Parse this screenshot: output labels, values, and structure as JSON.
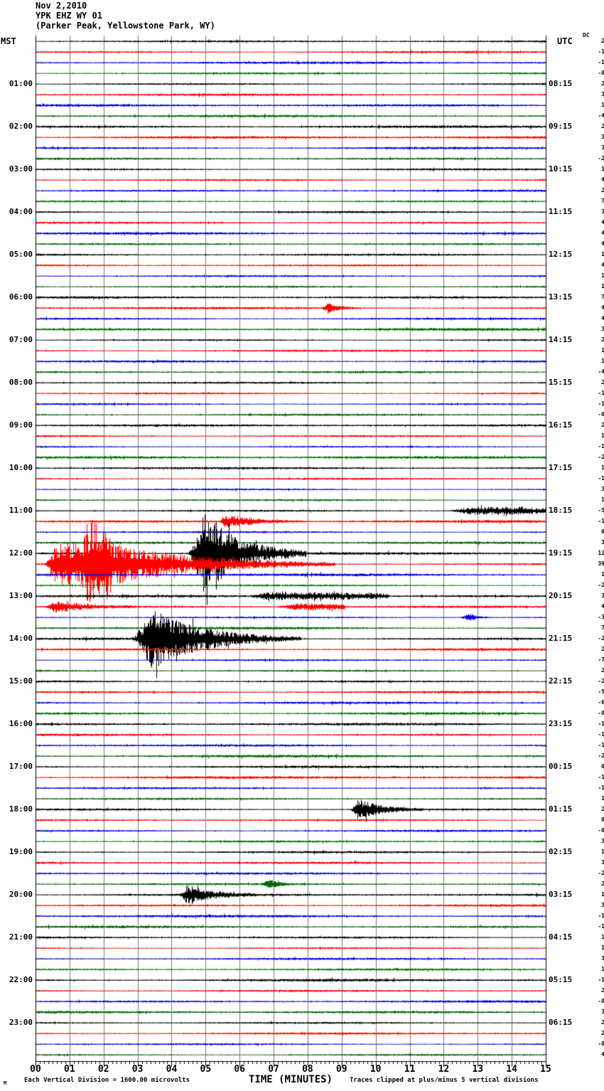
{
  "header": {
    "date": "Nov 2,2010",
    "station": "YPK EHZ WY 01",
    "location": "(Parker Peak, Yellowstone Park, WY)",
    "left_axis_label": "MST",
    "right_axis_label": "UTC",
    "dc_column_label": "DC"
  },
  "footer": {
    "scale_note": "Each Vertical Division = 1600.00 microvolts",
    "axis_title": "TIME (MINUTES)",
    "clip_note": "Traces clipped at plus/minus 5 vertical divisions",
    "watermark": "M"
  },
  "chart_data": {
    "type": "line",
    "subtype": "helicorder-seismogram",
    "title": "YPK EHZ WY 01 (Parker Peak, Yellowstone Park, WY) Nov 2,2010",
    "xlabel": "TIME (MINUTES)",
    "x_range_minutes": [
      0,
      15
    ],
    "x_tick_labels": [
      "00",
      "01",
      "02",
      "03",
      "04",
      "05",
      "06",
      "07",
      "08",
      "09",
      "10",
      "11",
      "12",
      "13",
      "14",
      "15"
    ],
    "minor_ticks_per_minute": 8,
    "minutes_per_trace": 15,
    "trace_count": 96,
    "first_trace_start_mst": "00:00",
    "color_cycle": [
      "#000000",
      "#ff0000",
      "#0000dd",
      "#006600"
    ],
    "grid_color": "#7a7a7a",
    "border_color": "#000000",
    "clip_divisions": 5,
    "noise_amplitude_divisions": 0.08,
    "left_labels_mst": [
      "01:00",
      "02:00",
      "03:00",
      "04:00",
      "05:00",
      "06:00",
      "07:00",
      "08:00",
      "09:00",
      "10:00",
      "11:00",
      "12:00",
      "13:00",
      "14:00",
      "15:00",
      "16:00",
      "17:00",
      "18:00",
      "19:00",
      "20:00",
      "21:00",
      "22:00",
      "23:00"
    ],
    "right_labels_utc": [
      "08:15",
      "09:15",
      "10:15",
      "11:15",
      "12:15",
      "13:15",
      "14:15",
      "15:15",
      "16:15",
      "17:15",
      "18:15",
      "19:15",
      "20:15",
      "21:15",
      "22:15",
      "23:15",
      "00:15",
      "01:15",
      "02:15",
      "03:15",
      "04:15",
      "05:15",
      "06:15"
    ],
    "dc_offsets": [
      "2",
      "-1",
      "-1",
      "-0",
      "2",
      "3",
      "1",
      "-4",
      "2",
      "3",
      "3",
      "-2",
      "1",
      "4",
      "2",
      "7",
      "3",
      "4",
      "4",
      "4",
      "1",
      "4",
      "1",
      "1",
      "7",
      "4",
      "4",
      "3",
      "2",
      "1",
      "1",
      "-4",
      "2",
      "-1",
      "-1",
      "-0",
      "2",
      "1",
      "-1",
      "-2",
      "1",
      "-1",
      "3",
      "1",
      "-5",
      "-1",
      "0",
      "3",
      "12",
      "39",
      "1",
      "-2",
      "3",
      "4",
      "-3",
      "7",
      "-2",
      "2",
      "-7",
      "2",
      "-2",
      "-5",
      "-6",
      "-0",
      "-1",
      "-1",
      "-1",
      "-2",
      "0",
      "-1",
      "-1",
      "1",
      "2",
      "0",
      "-0",
      "3",
      "1",
      "3",
      "-2",
      "2",
      "1",
      "3",
      "-1",
      "-1",
      "1",
      "1",
      "3",
      "1",
      "-1",
      "2",
      "-0",
      "3",
      "2",
      "2",
      "-0",
      "4"
    ],
    "events": [
      {
        "trace_index": 25,
        "trace_start_mst": "06:15",
        "start_min": 8.4,
        "peak_min": 8.58,
        "end_min": 9.55,
        "amp_div": 0.45,
        "sustain": false
      },
      {
        "trace_index": 44,
        "trace_start_mst": "11:00",
        "start_min": 12.05,
        "peak_min": 12.8,
        "end_min": 15.0,
        "amp_div": 0.3,
        "sustain": true
      },
      {
        "trace_index": 45,
        "trace_start_mst": "11:15",
        "start_min": 5.4,
        "peak_min": 5.52,
        "end_min": 7.9,
        "amp_div": 0.62,
        "sustain": false
      },
      {
        "trace_index": 48,
        "trace_start_mst": "12:00",
        "start_min": 4.45,
        "peak_min": 4.95,
        "end_min": 7.95,
        "amp_div": 3.6,
        "sustain": false
      },
      {
        "trace_index": 49,
        "trace_start_mst": "12:15",
        "start_min": 0.25,
        "peak_min": 0.6,
        "end_min": 2.2,
        "amp_div": 1.8,
        "sustain": true
      },
      {
        "trace_index": 49,
        "trace_start_mst": "12:15",
        "start_min": 1.3,
        "peak_min": 1.62,
        "end_min": 8.8,
        "amp_div": 2.3,
        "sustain": false
      },
      {
        "trace_index": 52,
        "trace_start_mst": "13:00",
        "start_min": 6.25,
        "peak_min": 6.7,
        "end_min": 10.4,
        "amp_div": 0.26,
        "sustain": true
      },
      {
        "trace_index": 53,
        "trace_start_mst": "13:15",
        "start_min": 0.3,
        "peak_min": 0.55,
        "end_min": 3.0,
        "amp_div": 0.5,
        "sustain": false
      },
      {
        "trace_index": 53,
        "trace_start_mst": "13:15",
        "start_min": 7.05,
        "peak_min": 7.6,
        "end_min": 9.1,
        "amp_div": 0.24,
        "sustain": true
      },
      {
        "trace_index": 54,
        "trace_start_mst": "13:30",
        "start_min": 12.45,
        "peak_min": 12.75,
        "end_min": 13.45,
        "amp_div": 0.34,
        "sustain": false
      },
      {
        "trace_index": 56,
        "trace_start_mst": "14:00",
        "start_min": 2.82,
        "peak_min": 3.4,
        "end_min": 7.8,
        "amp_div": 2.6,
        "sustain": false
      },
      {
        "trace_index": 72,
        "trace_start_mst": "18:00",
        "start_min": 9.25,
        "peak_min": 9.48,
        "end_min": 11.4,
        "amp_div": 0.95,
        "sustain": false
      },
      {
        "trace_index": 79,
        "trace_start_mst": "19:45",
        "start_min": 6.65,
        "peak_min": 6.85,
        "end_min": 7.6,
        "amp_div": 0.42,
        "sustain": false
      },
      {
        "trace_index": 80,
        "trace_start_mst": "20:00",
        "start_min": 4.22,
        "peak_min": 4.45,
        "end_min": 6.5,
        "amp_div": 0.78,
        "sustain": false
      }
    ]
  }
}
